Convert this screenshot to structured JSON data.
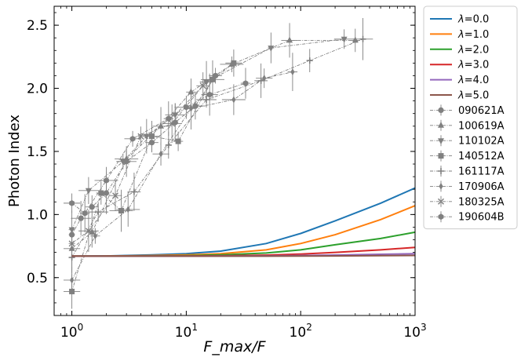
{
  "chart_data": {
    "type": "line",
    "title": "",
    "xlabel": "F_max/F",
    "ylabel": "Photon Index",
    "xscale": "log",
    "xlim": [
      0.7,
      1000
    ],
    "ylim": [
      0.2,
      2.65
    ],
    "x_ticks": [
      {
        "value": 1,
        "base": "10",
        "exp": "0"
      },
      {
        "value": 10,
        "base": "10",
        "exp": "1"
      },
      {
        "value": 100,
        "base": "10",
        "exp": "2"
      },
      {
        "value": 1000,
        "base": "10",
        "exp": "3"
      }
    ],
    "y_ticks": [
      {
        "value": 0.5,
        "label": "0.5"
      },
      {
        "value": 1.0,
        "label": "1.0"
      },
      {
        "value": 1.5,
        "label": "1.5"
      },
      {
        "value": 2.0,
        "label": "2.0"
      },
      {
        "value": 2.5,
        "label": "2.5"
      }
    ],
    "legend_position": "outside-right",
    "model_x": [
      1,
      2,
      5,
      10,
      20,
      50,
      100,
      200,
      500,
      1000
    ],
    "models": [
      {
        "name": "λ=0.0",
        "lambda_symbol": "λ",
        "lambda_value": "=0.0",
        "color": "#1f77b4",
        "values": [
          0.67,
          0.672,
          0.68,
          0.69,
          0.71,
          0.77,
          0.85,
          0.95,
          1.09,
          1.21
        ]
      },
      {
        "name": "λ=1.0",
        "lambda_symbol": "λ",
        "lambda_value": "=1.0",
        "color": "#ff7f0e",
        "values": [
          0.67,
          0.671,
          0.675,
          0.68,
          0.69,
          0.72,
          0.77,
          0.84,
          0.96,
          1.07
        ]
      },
      {
        "name": "λ=2.0",
        "lambda_symbol": "λ",
        "lambda_value": "=2.0",
        "color": "#2ca02c",
        "values": [
          0.67,
          0.67,
          0.671,
          0.674,
          0.68,
          0.695,
          0.72,
          0.76,
          0.81,
          0.86
        ]
      },
      {
        "name": "λ=3.0",
        "lambda_symbol": "λ",
        "lambda_value": "=3.0",
        "color": "#d62728",
        "values": [
          0.67,
          0.67,
          0.67,
          0.671,
          0.673,
          0.678,
          0.687,
          0.7,
          0.72,
          0.74
        ]
      },
      {
        "name": "λ=4.0",
        "lambda_symbol": "λ",
        "lambda_value": "=4.0",
        "color": "#9467bd",
        "values": [
          0.67,
          0.67,
          0.67,
          0.67,
          0.671,
          0.672,
          0.675,
          0.679,
          0.685,
          0.69
        ]
      },
      {
        "name": "λ=5.0",
        "lambda_symbol": "λ",
        "lambda_value": "=5.0",
        "color": "#8c564b",
        "values": [
          0.67,
          0.67,
          0.67,
          0.67,
          0.67,
          0.67,
          0.671,
          0.672,
          0.674,
          0.676
        ]
      }
    ],
    "grbs": [
      {
        "name": "090621A",
        "marker": "circle",
        "x": [
          1.0,
          1.2,
          1.5,
          2.0,
          3.0,
          5.0,
          8.0,
          12.0,
          18.0
        ],
        "y": [
          0.84,
          0.97,
          1.06,
          1.17,
          1.42,
          1.57,
          1.73,
          1.86,
          2.1
        ]
      },
      {
        "name": "100619A",
        "marker": "triangle-up",
        "x": [
          1.0,
          1.5,
          3.0,
          6.0,
          11.0,
          25.0,
          80.0,
          300.0
        ],
        "y": [
          0.73,
          0.86,
          1.44,
          1.7,
          1.97,
          2.19,
          2.38,
          2.38
        ]
      },
      {
        "name": "110102A",
        "marker": "triangle-down",
        "x": [
          1.0,
          1.4,
          2.8,
          4.5,
          8.0,
          15.0,
          55.0,
          240.0
        ],
        "y": [
          0.88,
          1.19,
          1.42,
          1.62,
          1.79,
          2.05,
          2.32,
          2.39
        ]
      },
      {
        "name": "140512A",
        "marker": "square",
        "x": [
          1.0,
          1.8,
          2.7,
          5.0,
          8.5,
          17.0,
          26.0
        ],
        "y": [
          0.39,
          1.17,
          1.03,
          1.62,
          1.58,
          2.07,
          2.2
        ]
      },
      {
        "name": "161117A",
        "marker": "plus",
        "x": [
          1.0,
          1.7,
          3.5,
          7.0,
          15.0,
          45.0,
          120.0,
          350.0
        ],
        "y": [
          0.66,
          1.02,
          1.18,
          1.55,
          1.91,
          2.06,
          2.22,
          2.39
        ]
      },
      {
        "name": "170906A",
        "marker": "thin-diamond",
        "x": [
          1.0,
          1.6,
          3.1,
          6.0,
          11.0,
          26.0,
          48.0,
          85.0
        ],
        "y": [
          0.48,
          0.83,
          1.04,
          1.48,
          1.84,
          1.91,
          2.08,
          2.13
        ]
      },
      {
        "name": "180325A",
        "marker": "x",
        "x": [
          1.0,
          1.4,
          2.4,
          4.0,
          7.5,
          14.0
        ],
        "y": [
          0.77,
          0.87,
          1.15,
          1.62,
          1.72,
          2.02
        ]
      },
      {
        "name": "190604B",
        "marker": "hexagon",
        "x": [
          1.0,
          1.3,
          2.0,
          3.4,
          7.0,
          10.0,
          16.0,
          33.0
        ],
        "y": [
          1.09,
          1.01,
          1.27,
          1.6,
          1.76,
          1.85,
          1.95,
          2.04
        ]
      }
    ],
    "grb_color": "#808080"
  }
}
